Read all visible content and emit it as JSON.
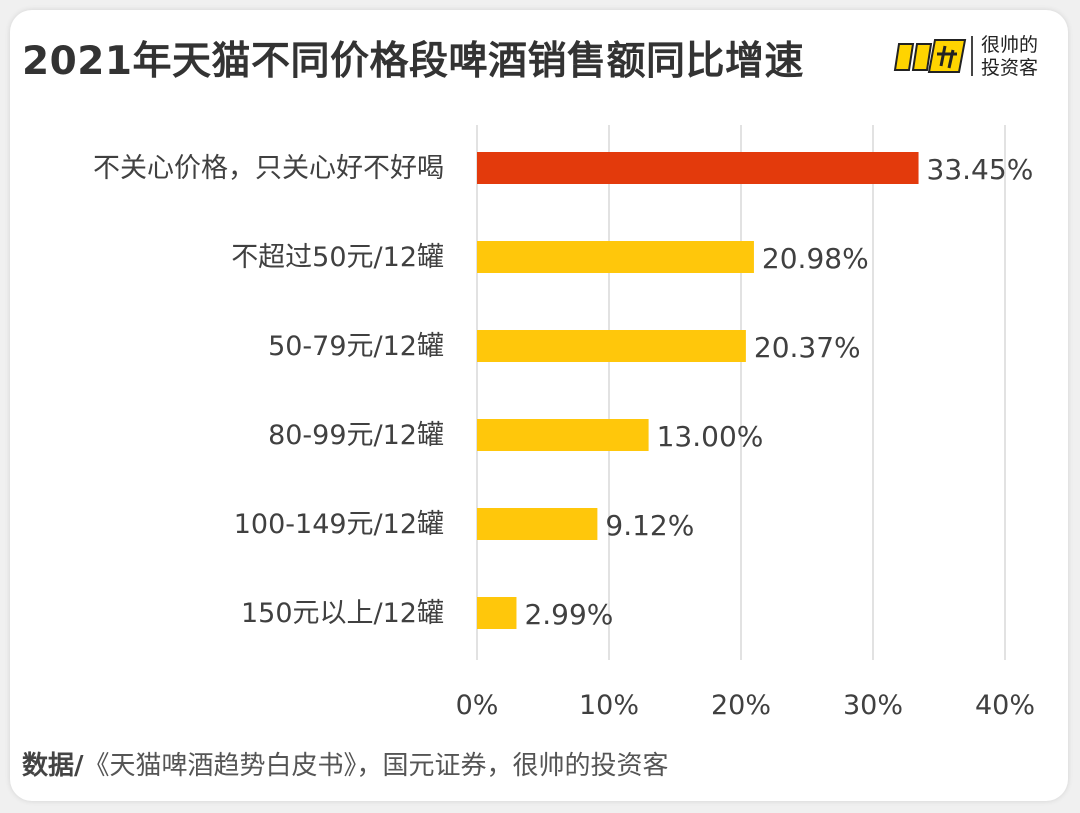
{
  "title": "2021年天猫不同价格段啤酒销售额同比增速",
  "logo": {
    "line1": "很帅的",
    "line2": "投资客"
  },
  "source": {
    "label": "数据/",
    "text": "《天猫啤酒趋势白皮书》，国元证券，很帅的投资客"
  },
  "colors": {
    "highlight": "#E33A0C",
    "bar": "#FFC70B",
    "grid": "#D9D9D9",
    "text": "#404040"
  },
  "chart_data": {
    "type": "bar",
    "orientation": "horizontal",
    "categories": [
      "不关心价格，只关心好不好喝",
      "不超过50元/12罐",
      "50-79元/12罐",
      "80-99元/12罐",
      "100-149元/12罐",
      "150元以上/12罐"
    ],
    "values": [
      33.45,
      20.98,
      20.37,
      13.0,
      9.12,
      2.99
    ],
    "data_labels": [
      "33.45%",
      "20.98%",
      "20.37%",
      "13.00%",
      "9.12%",
      "2.99%"
    ],
    "xticks": [
      "0%",
      "10%",
      "20%",
      "30%",
      "40%"
    ],
    "xlim": [
      0,
      40
    ],
    "grid": "vertical",
    "legend": "none"
  }
}
